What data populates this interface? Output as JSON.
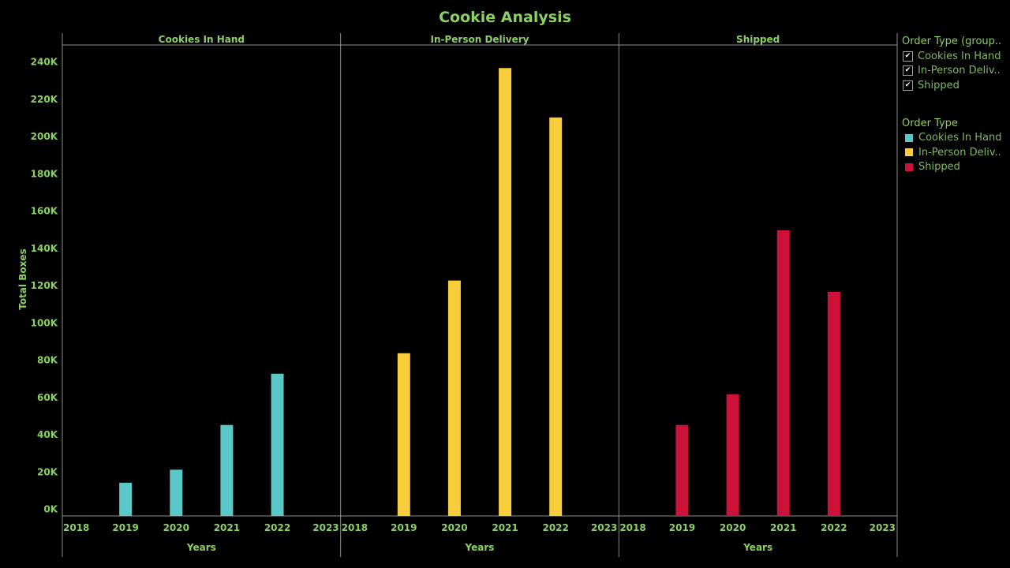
{
  "title": "Cookie Analysis",
  "colors": {
    "text": "#8ccf63",
    "legend_text": "#7fb862",
    "axis": "#8a8f8a",
    "cookies_in_hand": "#5bc8c8",
    "in_person_delivery": "#f7cd3b",
    "shipped": "#cc1239"
  },
  "filter_legend": {
    "title": "Order Type (group..",
    "items": [
      {
        "label": "Cookies In Hand",
        "check": "✔"
      },
      {
        "label": "In-Person Deliv..",
        "check": "✔"
      },
      {
        "label": "Shipped",
        "check": "✔"
      }
    ]
  },
  "color_legend": {
    "title": "Order Type",
    "items": [
      {
        "label": "Cookies In Hand",
        "color": "#5bc8c8"
      },
      {
        "label": "In-Person Deliv..",
        "color": "#f7cd3b"
      },
      {
        "label": "Shipped",
        "color": "#cc1239"
      }
    ]
  },
  "chart_data": {
    "type": "bar",
    "title": "Cookie Analysis",
    "ylabel": "Total Boxes",
    "xlabel": "Years",
    "ylim": [
      0,
      240000
    ],
    "y_ticks": [
      0,
      20000,
      40000,
      60000,
      80000,
      100000,
      120000,
      140000,
      160000,
      180000,
      200000,
      220000,
      240000
    ],
    "y_tick_labels": [
      "0K",
      "20K",
      "40K",
      "60K",
      "80K",
      "100K",
      "120K",
      "140K",
      "160K",
      "180K",
      "200K",
      "220K",
      "240K"
    ],
    "x_range": [
      2018,
      2023
    ],
    "x_ticks": [
      2018,
      2019,
      2020,
      2021,
      2022,
      2023
    ],
    "grid": false,
    "legend_placement": "right",
    "panels": [
      {
        "name": "Cookies In Hand",
        "color": "#5bc8c8",
        "x": [
          2019,
          2020,
          2021,
          2022
        ],
        "values": [
          14000,
          21000,
          45000,
          72500
        ]
      },
      {
        "name": "In-Person Delivery",
        "color": "#f7cd3b",
        "x": [
          2019,
          2020,
          2021,
          2022
        ],
        "values": [
          83500,
          122500,
          236500,
          210000
        ]
      },
      {
        "name": "Shipped",
        "color": "#cc1239",
        "x": [
          2019,
          2020,
          2021,
          2022
        ],
        "values": [
          45000,
          61500,
          149500,
          116500
        ]
      }
    ]
  }
}
